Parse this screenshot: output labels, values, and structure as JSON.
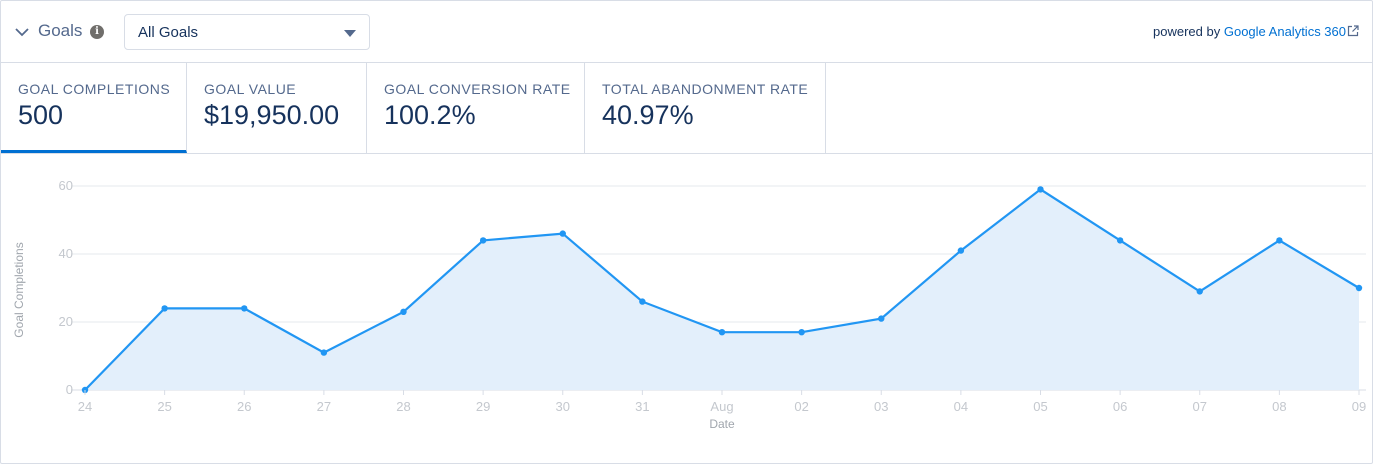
{
  "header": {
    "title": "Goals",
    "info_glyph": "i",
    "select_value": "All Goals",
    "powered_prefix": "powered by",
    "powered_link": "Google Analytics 360"
  },
  "tabs": [
    {
      "label": "GOAL COMPLETIONS",
      "value": "500",
      "active": true
    },
    {
      "label": "GOAL VALUE",
      "value": "$19,950.00",
      "active": false
    },
    {
      "label": "GOAL CONVERSION RATE",
      "value": "100.2%",
      "active": false
    },
    {
      "label": "TOTAL ABANDONMENT RATE",
      "value": "40.97%",
      "active": false
    }
  ],
  "colors": {
    "accent": "#0070d2",
    "line": "#2196f3",
    "area": "#e3effb",
    "grid": "#e6e9ee",
    "axis_text": "#c4c8ce"
  },
  "chart_data": {
    "type": "area",
    "xlabel": "Date",
    "ylabel": "Goal Completions",
    "categories": [
      "24",
      "25",
      "26",
      "27",
      "28",
      "29",
      "30",
      "31",
      "Aug",
      "02",
      "03",
      "04",
      "05",
      "06",
      "07",
      "08",
      "09"
    ],
    "values": [
      0,
      24,
      24,
      11,
      23,
      44,
      46,
      26,
      17,
      17,
      21,
      41,
      59,
      44,
      29,
      44,
      30
    ],
    "yticks": [
      0,
      20,
      40,
      60
    ],
    "ylim": [
      0,
      60
    ],
    "grid": true
  }
}
